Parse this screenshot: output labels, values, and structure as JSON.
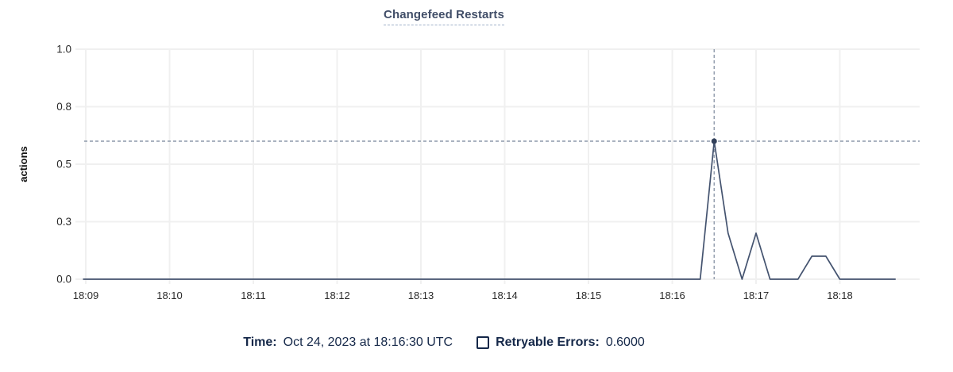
{
  "chart_data": {
    "type": "line",
    "title": "Changefeed Restarts",
    "ylabel": "actions",
    "xlabel": "",
    "grid": true,
    "legend_position": "bottom",
    "ylim": [
      0,
      1
    ],
    "x_ticks": [
      "18:09",
      "18:10",
      "18:11",
      "18:12",
      "18:13",
      "18:14",
      "18:15",
      "18:16",
      "18:17",
      "18:18"
    ],
    "y_ticks": {
      "values": [
        0,
        0.25,
        0.5,
        0.75,
        1
      ],
      "labels": [
        "0.0",
        "0.3",
        "0.5",
        "0.8",
        "1.0"
      ]
    },
    "series": [
      {
        "name": "Retryable Errors",
        "points": [
          [
            "18:08:58",
            0
          ],
          [
            "18:16:20",
            0
          ],
          [
            "18:16:30",
            0.6
          ],
          [
            "18:16:40",
            0.2
          ],
          [
            "18:16:50",
            0
          ],
          [
            "18:17:00",
            0.2
          ],
          [
            "18:17:10",
            0
          ],
          [
            "18:17:30",
            0
          ],
          [
            "18:17:40",
            0.1
          ],
          [
            "18:17:50",
            0.1
          ],
          [
            "18:18:00",
            0
          ],
          [
            "18:18:40",
            0
          ]
        ]
      }
    ],
    "highlight": {
      "time": "18:16:30",
      "value": 0.6
    }
  },
  "legend": {
    "time_label": "Time:",
    "time_value": "Oct 24, 2023 at 18:16:30 UTC",
    "series_label": "Retryable Errors:",
    "series_value": "0.6000",
    "series_checked": false
  },
  "colors": {
    "title_text": "#414e68",
    "title_underline": "#9fb0c9",
    "legend_text": "#152849",
    "series_line": "#44536f",
    "highlight_dot": "#32405a",
    "crosshair": "#8e9aab",
    "gridline": "#f0f0f0",
    "tick_text": "#2b2b2b",
    "axis_label_text": "#111111"
  }
}
